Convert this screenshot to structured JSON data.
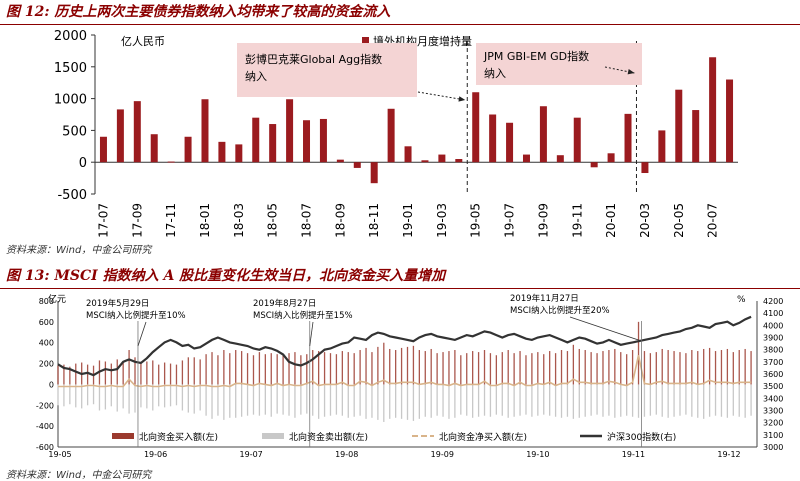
{
  "figure12": {
    "title": "图 12: 历史上两次主要债券指数纳入均带来了较高的资金流入",
    "source": "资料来源：Wind，中金公司研究",
    "unit_label": "亿人民币",
    "legend_label": "境外机构月度增持量",
    "callout1": [
      "彭博巴克莱Global Agg指数",
      "纳入"
    ],
    "callout2": [
      "JPM GBI-EM GD指数",
      "纳入"
    ],
    "bar_color": "#9b1b1f",
    "callout_color": "#f4d4d4"
  },
  "figure13": {
    "title": "图 13: MSCI 指数纳入 A 股比重变化生效当日，北向资金买入量增加",
    "source": "资料来源：Wind，中金公司研究",
    "left_unit": "亿元",
    "right_unit": "%",
    "ann1": [
      "2019年5月29日",
      "MSCI纳入比例提升至10%"
    ],
    "ann2": [
      "2019年8月27日",
      "MSCI纳入比例提升至15%"
    ],
    "ann3": [
      "2019年11月27日",
      "MSCI纳入比例提升至20%"
    ],
    "legend": [
      "北向资金买入额(左)",
      "北向资金卖出额(左)",
      "北向资金净买入额(左)",
      "沪深300指数(右)"
    ],
    "colors": {
      "buy": "#9b3a2e",
      "sell": "#c8c8c8",
      "net": "#d9b48a",
      "index": "#333333"
    }
  },
  "chart_data": [
    {
      "type": "bar",
      "title": "历史上两次主要债券指数纳入均带来了较高的资金流入",
      "ylabel": "亿人民币",
      "ylim": [
        -500,
        2000
      ],
      "yticks": [
        2000,
        1500,
        1000,
        500,
        0,
        -500
      ],
      "categories": [
        "17-07",
        "17-08",
        "17-09",
        "17-10",
        "17-11",
        "17-12",
        "18-01",
        "18-02",
        "18-03",
        "18-04",
        "18-05",
        "18-06",
        "18-07",
        "18-08",
        "18-09",
        "18-10",
        "18-11",
        "18-12",
        "19-01",
        "19-02",
        "19-03",
        "19-04",
        "19-05",
        "19-06",
        "19-07",
        "19-08",
        "19-09",
        "19-10",
        "19-11",
        "19-12",
        "20-01",
        "20-02",
        "20-03",
        "20-04",
        "20-05",
        "20-06",
        "20-07",
        "20-08"
      ],
      "tick_labels": [
        "17-07",
        "17-09",
        "17-11",
        "18-01",
        "18-03",
        "18-05",
        "18-07",
        "18-09",
        "18-11",
        "19-01",
        "19-03",
        "19-05",
        "19-07",
        "19-09",
        "19-11",
        "20-01",
        "20-03",
        "20-05",
        "20-07"
      ],
      "series": [
        {
          "name": "境外机构月度增持量",
          "values": [
            400,
            830,
            960,
            440,
            10,
            400,
            990,
            320,
            280,
            700,
            600,
            990,
            660,
            680,
            40,
            -90,
            -330,
            840,
            250,
            30,
            120,
            50,
            1100,
            750,
            620,
            120,
            880,
            110,
            700,
            -80,
            140,
            760,
            -170,
            500,
            1140,
            820,
            1650,
            1300
          ]
        }
      ],
      "vlines_at": [
        "19-04",
        "20-02"
      ]
    },
    {
      "type": "line",
      "title": "MSCI 指数纳入 A 股比重变化生效当日，北向资金买入量增加",
      "ylabel_left": "亿元",
      "ylabel_right": "%",
      "ylim_left": [
        -600,
        800
      ],
      "ylim_right": [
        3000,
        4200
      ],
      "yticks_left": [
        800,
        600,
        400,
        200,
        0,
        -200,
        -400,
        -600
      ],
      "yticks_right": [
        4200,
        4100,
        4000,
        3900,
        3800,
        3700,
        3600,
        3500,
        3400,
        3300,
        3200,
        3100,
        3000
      ],
      "x_tick_labels": [
        "19-05",
        "19-06",
        "19-07",
        "19-08",
        "19-09",
        "19-10",
        "19-11",
        "19-12"
      ],
      "x": [
        0,
        2,
        4,
        6,
        8,
        10,
        12,
        14,
        16,
        18,
        20,
        22,
        24,
        26,
        28,
        30,
        32,
        34,
        36,
        38,
        40,
        42,
        44,
        46,
        48,
        50,
        52,
        54,
        56,
        58,
        60,
        62,
        64,
        66,
        68,
        70,
        72,
        74,
        76,
        78,
        80,
        82,
        84,
        86,
        88,
        90,
        92,
        94,
        96,
        98,
        100,
        102,
        104,
        106,
        108,
        110,
        112,
        114,
        116,
        118,
        120,
        122,
        124,
        126,
        128,
        130,
        132,
        134,
        136,
        138,
        140,
        142,
        144,
        146,
        148,
        150,
        152,
        154,
        156,
        158,
        160,
        162,
        164,
        166,
        168,
        170,
        172,
        174,
        176,
        178,
        180,
        182,
        184,
        186,
        188,
        190,
        192,
        194,
        196,
        198,
        200,
        202,
        204,
        206,
        208,
        210,
        212,
        214,
        216,
        218,
        220,
        222,
        224,
        226,
        228,
        230,
        232,
        234
      ],
      "series": [
        {
          "name": "北向资金买入额(左)",
          "values": [
            180,
            190,
            170,
            200,
            210,
            190,
            180,
            230,
            220,
            200,
            240,
            210,
            330,
            260,
            200,
            220,
            230,
            190,
            210,
            200,
            190,
            230,
            260,
            260,
            240,
            290,
            310,
            280,
            330,
            300,
            330,
            320,
            300,
            280,
            310,
            290,
            300,
            290,
            280,
            300,
            310,
            280,
            290,
            330,
            320,
            310,
            300,
            290,
            320,
            310,
            300,
            330,
            350,
            310,
            360,
            400,
            340,
            330,
            350,
            360,
            370,
            330,
            320,
            340,
            300,
            310,
            320,
            330,
            280,
            300,
            320,
            310,
            330,
            300,
            280,
            310,
            330,
            300,
            320,
            280,
            300,
            310,
            290,
            320,
            300,
            330,
            320,
            380,
            340,
            330,
            310,
            300,
            320,
            330,
            340,
            310,
            290,
            330,
            600,
            320,
            300,
            310,
            340,
            330,
            320,
            310,
            300,
            330,
            320,
            340,
            350,
            320,
            330,
            340,
            310,
            330,
            340,
            320
          ]
        },
        {
          "name": "北向资金卖出额(左)",
          "values": [
            -200,
            -210,
            -190,
            -220,
            -230,
            -200,
            -190,
            -250,
            -240,
            -210,
            -260,
            -230,
            -280,
            -270,
            -220,
            -230,
            -250,
            -210,
            -220,
            -210,
            -200,
            -250,
            -270,
            -280,
            -250,
            -300,
            -330,
            -300,
            -340,
            -320,
            -320,
            -310,
            -300,
            -290,
            -300,
            -290,
            -310,
            -280,
            -290,
            -300,
            -320,
            -290,
            -280,
            -300,
            -330,
            -310,
            -300,
            -290,
            -300,
            -320,
            -310,
            -300,
            -330,
            -320,
            -340,
            -360,
            -330,
            -320,
            -330,
            -340,
            -350,
            -330,
            -310,
            -320,
            -300,
            -310,
            -330,
            -320,
            -290,
            -300,
            -320,
            -310,
            -300,
            -310,
            -290,
            -300,
            -320,
            -310,
            -300,
            -290,
            -310,
            -300,
            -290,
            -300,
            -310,
            -320,
            -310,
            -330,
            -320,
            -310,
            -300,
            -290,
            -310,
            -300,
            -320,
            -310,
            -300,
            -310,
            -320,
            -310,
            -300,
            -290,
            -310,
            -320,
            -310,
            -300,
            -290,
            -310,
            -320,
            -330,
            -310,
            -300,
            -310,
            -320,
            -300,
            -310,
            -320,
            -300
          ]
        },
        {
          "name": "北向资金净买入额(左)",
          "values": [
            -20,
            -20,
            -20,
            -20,
            -20,
            -10,
            -10,
            -20,
            -20,
            -10,
            -20,
            -20,
            50,
            -10,
            -20,
            -10,
            -20,
            -20,
            -10,
            -10,
            -10,
            -20,
            -10,
            -20,
            -10,
            -10,
            -20,
            -20,
            -10,
            -20,
            10,
            10,
            0,
            -10,
            10,
            0,
            -10,
            10,
            -10,
            0,
            -10,
            -10,
            10,
            30,
            -10,
            0,
            0,
            0,
            20,
            -10,
            -10,
            30,
            20,
            -10,
            20,
            40,
            10,
            10,
            20,
            20,
            20,
            0,
            10,
            20,
            0,
            0,
            -10,
            10,
            -10,
            0,
            0,
            0,
            30,
            -10,
            -10,
            10,
            10,
            -10,
            20,
            -10,
            -10,
            10,
            0,
            20,
            -10,
            10,
            10,
            50,
            20,
            20,
            10,
            10,
            10,
            30,
            20,
            0,
            -10,
            20,
            280,
            10,
            0,
            20,
            30,
            10,
            10,
            10,
            10,
            20,
            0,
            10,
            40,
            20,
            20,
            20,
            10,
            20,
            20,
            20
          ]
        },
        {
          "name": "沪深300指数(右)",
          "values": [
            3680,
            3650,
            3640,
            3620,
            3600,
            3610,
            3590,
            3620,
            3640,
            3630,
            3640,
            3700,
            3720,
            3700,
            3690,
            3730,
            3780,
            3820,
            3860,
            3880,
            3860,
            3830,
            3840,
            3810,
            3820,
            3850,
            3880,
            3900,
            3880,
            3860,
            3850,
            3840,
            3830,
            3810,
            3800,
            3820,
            3810,
            3790,
            3760,
            3700,
            3680,
            3670,
            3690,
            3720,
            3760,
            3800,
            3810,
            3830,
            3850,
            3860,
            3900,
            3890,
            3880,
            3920,
            3940,
            3930,
            3910,
            3900,
            3890,
            3880,
            3870,
            3900,
            3920,
            3930,
            3910,
            3900,
            3890,
            3880,
            3900,
            3920,
            3910,
            3930,
            3950,
            3940,
            3920,
            3900,
            3920,
            3930,
            3910,
            3890,
            3880,
            3900,
            3910,
            3920,
            3900,
            3880,
            3860,
            3880,
            3900,
            3890,
            3870,
            3850,
            3860,
            3880,
            3860,
            3840,
            3850,
            3860,
            3870,
            3880,
            3890,
            3900,
            3920,
            3930,
            3940,
            3950,
            3970,
            3980,
            4000,
            3990,
            3980,
            4010,
            4020,
            4030,
            4000,
            4020,
            4050,
            4070
          ]
        }
      ],
      "annotations_at_x": [
        27,
        85,
        197
      ]
    }
  ]
}
